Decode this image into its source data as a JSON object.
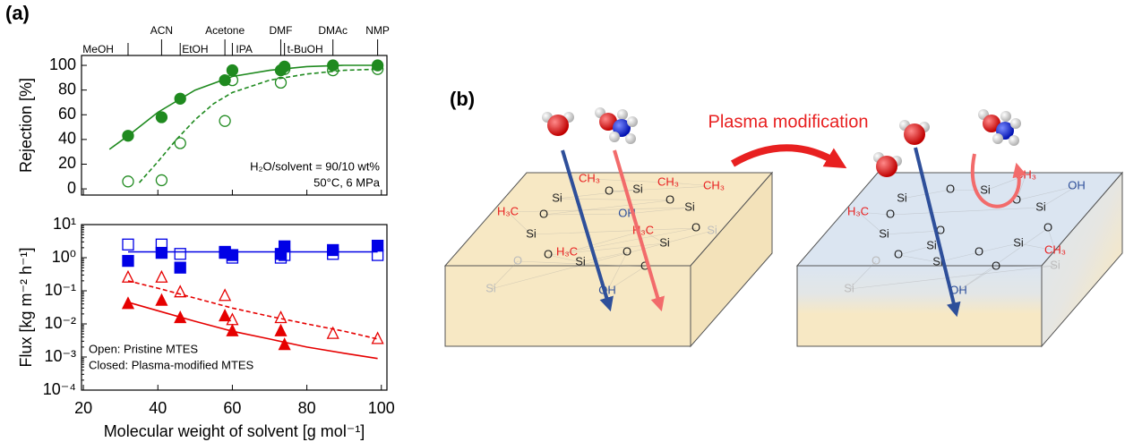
{
  "panel_a": "(a)",
  "chart_data": [
    {
      "type": "scatter",
      "ylabel": "Rejection [%]",
      "xlim": [
        19.5,
        101.5
      ],
      "ylim": [
        -5,
        108
      ],
      "xticks": [
        20,
        40,
        60,
        80,
        100
      ],
      "yticks": [
        0,
        20,
        40,
        60,
        80,
        100
      ],
      "solvents": {
        "names": [
          "MeOH",
          "ACN",
          "EtOH",
          "Acetone",
          "IPA",
          "DMF",
          "t-BuOH",
          "DMAc",
          "NMP"
        ],
        "x": [
          32,
          41,
          46,
          58,
          60,
          73,
          74,
          87,
          99
        ]
      },
      "annotations": [
        "H₂O/solvent = 90/10 wt%",
        "50°C, 6 MPa"
      ],
      "series": [
        {
          "marker": "circle",
          "filled": true,
          "color": "#1f8a1f",
          "x": [
            32,
            41,
            46,
            58,
            60,
            73,
            74,
            87,
            99
          ],
          "values": [
            43,
            58,
            73,
            88,
            96,
            96,
            99,
            100,
            100
          ]
        },
        {
          "marker": "circle",
          "filled": false,
          "color": "#1f8a1f",
          "x": [
            32,
            41,
            46,
            58,
            60,
            73,
            74,
            87,
            99
          ],
          "values": [
            6,
            7,
            37,
            55,
            88,
            86,
            97,
            96,
            97
          ]
        }
      ],
      "fits": [
        {
          "color": "#1f8a1f",
          "dashed": false,
          "x": [
            27,
            32,
            40,
            50,
            60,
            70,
            80,
            90,
            100
          ],
          "values": [
            32,
            43,
            62,
            80,
            91,
            96,
            99,
            100,
            100
          ]
        },
        {
          "color": "#1f8a1f",
          "dashed": true,
          "x": [
            35,
            40,
            45,
            50,
            55,
            60,
            70,
            80,
            90,
            100
          ],
          "values": [
            5,
            22,
            40,
            56,
            69,
            78,
            88,
            93,
            96,
            97
          ]
        }
      ]
    },
    {
      "type": "scatter",
      "log_y": true,
      "xlabel": "Molecular weight of solvent [g mol⁻¹]",
      "ylabel": "Flux [kg m⁻² h⁻¹]",
      "xlim": [
        19.5,
        101.5
      ],
      "ylim": [
        0.0001,
        10
      ],
      "xticks": [
        20,
        40,
        60,
        80,
        100
      ],
      "yticks": [
        {
          "value": 0.0001,
          "label": "10⁻⁴"
        },
        {
          "value": 0.001,
          "label": "10⁻³"
        },
        {
          "value": 0.01,
          "label": "10⁻²"
        },
        {
          "value": 0.1,
          "label": "10⁻¹"
        },
        {
          "value": 1,
          "label": "10⁰"
        },
        {
          "value": 10,
          "label": "10¹"
        }
      ],
      "annotations": [
        "Open: Pristine MTES",
        "Closed: Plasma-modified MTES"
      ],
      "series": [
        {
          "marker": "square",
          "filled": false,
          "color": "#0000e6",
          "x": [
            32,
            41,
            46,
            58,
            60,
            73,
            74,
            87,
            99
          ],
          "values": [
            2.5,
            2.5,
            1.3,
            1.5,
            1.0,
            1.0,
            1.2,
            1.3,
            1.2
          ]
        },
        {
          "marker": "square",
          "filled": true,
          "color": "#0000e6",
          "x": [
            32,
            41,
            46,
            58,
            60,
            73,
            74,
            87,
            99
          ],
          "values": [
            0.8,
            1.4,
            0.5,
            1.4,
            1.2,
            1.3,
            2.2,
            1.7,
            2.3
          ]
        },
        {
          "marker": "triangle",
          "filled": false,
          "color": "#e60000",
          "x": [
            32,
            41,
            46,
            58,
            60,
            73,
            87,
            99
          ],
          "values": [
            0.25,
            0.25,
            0.09,
            0.07,
            0.013,
            0.015,
            0.005,
            0.0035
          ]
        },
        {
          "marker": "triangle",
          "filled": true,
          "color": "#e60000",
          "x": [
            32,
            41,
            46,
            58,
            60,
            73,
            74
          ],
          "values": [
            0.04,
            0.05,
            0.015,
            0.017,
            0.006,
            0.006,
            0.0023
          ]
        }
      ],
      "fits": [
        {
          "color": "#0000e6",
          "dashed": false,
          "x": [
            32,
            99
          ],
          "values": [
            1.5,
            1.5
          ]
        },
        {
          "color": "#e60000",
          "dashed": true,
          "x": [
            32,
            40,
            50,
            60,
            70,
            80,
            90,
            99
          ],
          "values": [
            0.2,
            0.12,
            0.06,
            0.03,
            0.017,
            0.01,
            0.006,
            0.0035
          ]
        },
        {
          "color": "#e60000",
          "dashed": false,
          "x": [
            32,
            40,
            50,
            60,
            70,
            80,
            90,
            99
          ],
          "values": [
            0.045,
            0.025,
            0.012,
            0.006,
            0.0035,
            0.002,
            0.0013,
            0.0009
          ]
        }
      ]
    }
  ],
  "diagram": {
    "label": "(b)",
    "process": "Plasma modification",
    "left_labels": [
      "CH₃",
      "CH₃",
      "CH₃",
      "O",
      "Si",
      "Si",
      "O",
      "O",
      "OH",
      "Si",
      "H₃C",
      "Si",
      "O",
      "H₃C",
      "H₃C",
      "Si",
      "O",
      "Si",
      "O",
      "OH",
      "O",
      "O",
      "Si",
      "Si"
    ],
    "right_labels": [
      "Si",
      "O",
      "Si",
      "CH₃",
      "O",
      "OH",
      "Si",
      "O",
      "H₃C",
      "Si",
      "O",
      "Si",
      "O",
      "Si",
      "O",
      "Si",
      "CH₃",
      "O",
      "OH",
      "O",
      "Si",
      "Si",
      "O"
    ]
  }
}
